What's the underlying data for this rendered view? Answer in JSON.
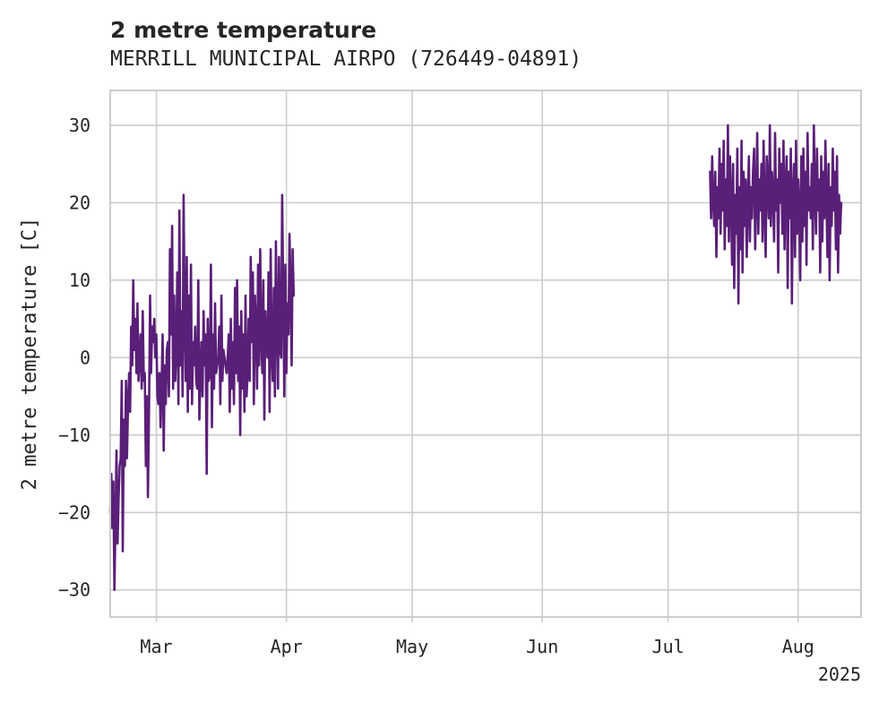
{
  "chart_data": {
    "type": "line",
    "title": "2 metre temperature",
    "subtitle": "MERRILL MUNICIPAL AIRPO (726449-04891)",
    "ylabel": "2 metre temperature [C]",
    "xlabel": "",
    "xlim": [
      "2025-02-18",
      "2025-08-16"
    ],
    "ylim": [
      -33.5,
      34.5
    ],
    "yticks": [
      -30,
      -20,
      -10,
      0,
      10,
      20,
      30
    ],
    "xticks": [
      {
        "date": "2025-03-01",
        "label": "Mar"
      },
      {
        "date": "2025-04-01",
        "label": "Apr"
      },
      {
        "date": "2025-05-01",
        "label": "May"
      },
      {
        "date": "2025-06-01",
        "label": "Jun"
      },
      {
        "date": "2025-07-01",
        "label": "Jul"
      },
      {
        "date": "2025-08-01",
        "label": "Aug"
      }
    ],
    "year_label": "2025",
    "grid": true,
    "series": [
      {
        "color": "#5a1f78",
        "segments": [
          {
            "start": "2025-02-18",
            "interval_hours": 6,
            "values": [
              -20,
              -15,
              -22,
              -16,
              -30,
              -21,
              -12,
              -24,
              -18,
              -14,
              -13,
              -3,
              -25,
              -8,
              -14,
              -3,
              -13,
              -6,
              -2,
              -7,
              4,
              -1,
              10,
              1,
              5,
              -2,
              7,
              -3,
              0,
              3,
              -4,
              6,
              -3,
              -2,
              -14,
              -5,
              -18,
              -7,
              8,
              -2,
              4,
              2,
              5,
              0,
              3,
              -5,
              -6,
              -2,
              -9,
              -4,
              3,
              -12,
              -1,
              -6,
              1,
              2,
              -5,
              14,
              3,
              17,
              -4,
              8,
              -3,
              1,
              11,
              -6,
              19,
              -1,
              6,
              -5,
              21,
              5,
              -3,
              13,
              -7,
              8,
              -4,
              12,
              -6,
              2,
              -1,
              4,
              -3,
              -4,
              10,
              -8,
              -2,
              2,
              -5,
              6,
              -1,
              3,
              -15,
              5,
              -3,
              -2,
              12,
              -9,
              3,
              -4,
              7,
              -2,
              -1,
              0,
              4,
              -6,
              8,
              -3,
              1,
              0,
              -1,
              -2,
              0,
              3,
              -7,
              5,
              -4,
              2,
              -6,
              9,
              -2,
              10,
              -3,
              4,
              -10,
              6,
              -4,
              3,
              -7,
              8,
              -5,
              -2,
              5,
              -3,
              13,
              2,
              11,
              -6,
              8,
              4,
              -4,
              12,
              -1,
              14,
              3,
              -2,
              10,
              -8,
              6,
              2,
              0,
              11,
              -7,
              14,
              1,
              -3,
              9,
              -5,
              15,
              5,
              -4,
              13,
              1,
              0,
              21,
              8,
              -5,
              12,
              -2,
              7,
              3,
              16,
              9,
              -1,
              14,
              8
            ]
          },
          {
            "start": "2025-07-11",
            "interval_hours": 6,
            "values": [
              24,
              18,
              26,
              20,
              17,
              24,
              13,
              22,
              18,
              27,
              16,
              25,
              19,
              28,
              14,
              23,
              17,
              30,
              15,
              26,
              20,
              12,
              25,
              9,
              21,
              16,
              27,
              7,
              22,
              14,
              28,
              11,
              24,
              17,
              23,
              13,
              20,
              26,
              15,
              22,
              18,
              24,
              27,
              14,
              21,
              29,
              16,
              23,
              19,
              25,
              15,
              28,
              20,
              13,
              26,
              22,
              18,
              30,
              17,
              24,
              21,
              15,
              29,
              19,
              23,
              11,
              27,
              20,
              25,
              16,
              28,
              14,
              22,
              26,
              9,
              24,
              18,
              27,
              7,
              21,
              25,
              13,
              28,
              16,
              23,
              20,
              10,
              26,
              15,
              27,
              17,
              24,
              12,
              29,
              19,
              22,
              18,
              25,
              14,
              30,
              21,
              16,
              27,
              19,
              23,
              11,
              26,
              15,
              24,
              18,
              28,
              20,
              13,
              25,
              10,
              22,
              17,
              27,
              19,
              24,
              14,
              26,
              11,
              21,
              16,
              20
            ]
          }
        ]
      }
    ]
  }
}
